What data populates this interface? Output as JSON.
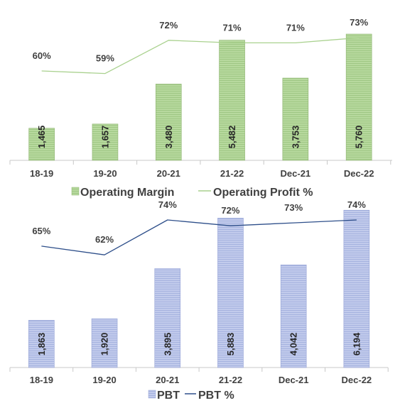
{
  "chart_data": [
    {
      "type": "bar",
      "categories": [
        "18-19",
        "19-20",
        "20-21",
        "21-22",
        "Dec-21",
        "Dec-22"
      ],
      "series": [
        {
          "name": "Operating Margin",
          "kind": "bar",
          "values": [
            1465,
            1657,
            3480,
            5482,
            3753,
            5760
          ],
          "labels": [
            "1,465",
            "1,657",
            "3,480",
            "5,482",
            "3,753",
            "5,760"
          ],
          "color": "#a9d18e",
          "stroke": "#8db36f"
        },
        {
          "name": "Operating Profit %",
          "kind": "line",
          "values": [
            60,
            59,
            72,
            71,
            71,
            73
          ],
          "labels": [
            "60%",
            "59%",
            "72%",
            "71%",
            "71%",
            "73%"
          ],
          "color": "#a9d18e"
        }
      ],
      "legend": "bottom",
      "grid": false
    },
    {
      "type": "bar",
      "categories": [
        "18-19",
        "19-20",
        "20-21",
        "21-22",
        "Dec-21",
        "Dec-22"
      ],
      "series": [
        {
          "name": "PBT",
          "kind": "bar",
          "values": [
            1863,
            1920,
            3895,
            5883,
            4042,
            6194
          ],
          "labels": [
            "1,863",
            "1,920",
            "3,895",
            "5,883",
            "4,042",
            "6,194"
          ],
          "color": "#b4c0e6",
          "stroke": "#94a2d6"
        },
        {
          "name": "PBT %",
          "kind": "line",
          "values": [
            65,
            62,
            74,
            72,
            73,
            74
          ],
          "labels": [
            "65%",
            "62%",
            "74%",
            "72%",
            "73%",
            "74%"
          ],
          "color": "#2e4f8a"
        }
      ],
      "legend": "bottom",
      "grid": false
    }
  ]
}
